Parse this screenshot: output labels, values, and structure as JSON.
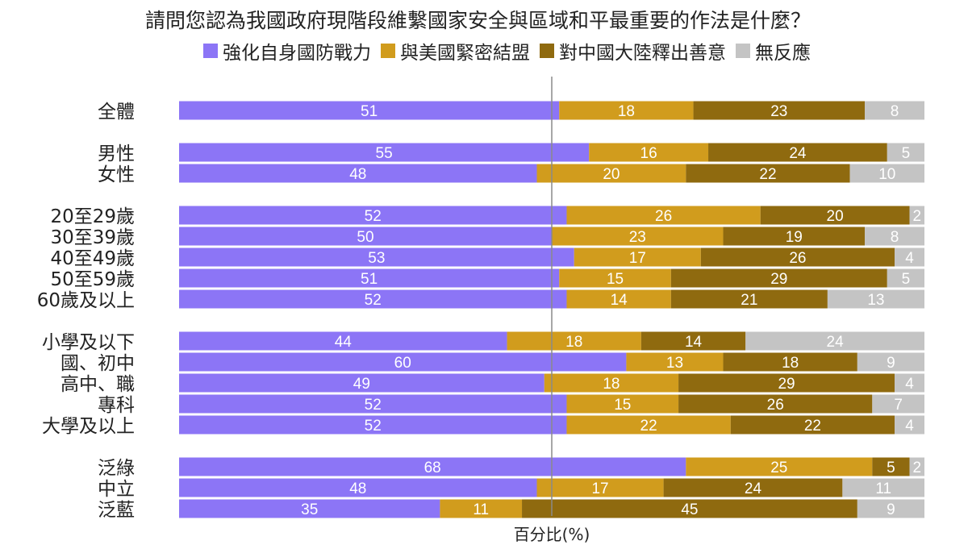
{
  "chart_data": {
    "type": "bar",
    "orientation": "horizontal",
    "stacked": true,
    "title": "請問您認為我國政府現階段維繫國家安全與區域和平最重要的作法是什麼？",
    "xlabel": "百分比(%)",
    "ylabel": "",
    "xlim": [
      0,
      100
    ],
    "reference_line": 50,
    "grid": false,
    "legend_position": "top",
    "categories": [
      "全體",
      "男性",
      "女性",
      "20至29歲",
      "30至39歲",
      "40至49歲",
      "50至59歲",
      "60歲及以上",
      "小學及以下",
      "國、初中",
      "高中、職",
      "專科",
      "大學及以上",
      "泛綠",
      "中立",
      "泛藍"
    ],
    "groups": [
      [
        0
      ],
      [
        1,
        2
      ],
      [
        3,
        4,
        5,
        6,
        7
      ],
      [
        8,
        9,
        10,
        11,
        12
      ],
      [
        13,
        14,
        15
      ]
    ],
    "series": [
      {
        "name": "強化自身國防戰力",
        "color": "#8c75f6",
        "label_color": "#ffffff",
        "values": [
          51,
          55,
          48,
          52,
          50,
          53,
          51,
          52,
          44,
          60,
          49,
          52,
          52,
          68,
          48,
          35
        ]
      },
      {
        "name": "與美國緊密結盟",
        "color": "#d19c1d",
        "label_color": "#ffffff",
        "values": [
          18,
          16,
          20,
          26,
          23,
          17,
          15,
          14,
          18,
          13,
          18,
          15,
          22,
          25,
          17,
          11
        ]
      },
      {
        "name": "對中國大陸釋出善意",
        "color": "#8f6a0f",
        "label_color": "#ffffff",
        "values": [
          23,
          24,
          22,
          20,
          19,
          26,
          29,
          21,
          14,
          18,
          29,
          26,
          22,
          5,
          24,
          45
        ]
      },
      {
        "name": "無反應",
        "color": "#c4c4c4",
        "label_color": "#ffffff",
        "values": [
          8,
          5,
          10,
          2,
          8,
          4,
          5,
          13,
          24,
          9,
          4,
          7,
          4,
          2,
          11,
          9
        ]
      }
    ]
  }
}
